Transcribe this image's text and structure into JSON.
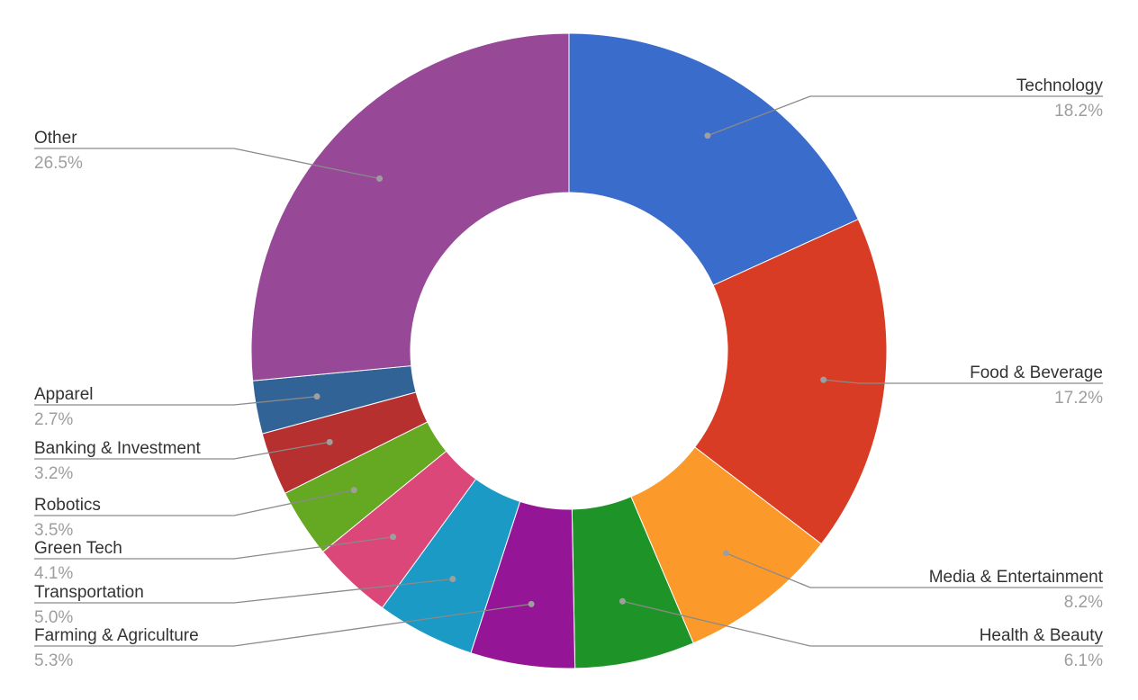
{
  "chart_data": {
    "type": "pie",
    "donut": true,
    "slices": [
      {
        "label": "Technology",
        "value": 18.2,
        "value_label": "18.2%",
        "color": "#3a6ccb"
      },
      {
        "label": "Food & Beverage",
        "value": 17.2,
        "value_label": "17.2%",
        "color": "#d93c25"
      },
      {
        "label": "Media & Entertainment",
        "value": 8.2,
        "value_label": "8.2%",
        "color": "#fb9a2a"
      },
      {
        "label": "Health & Beauty",
        "value": 6.1,
        "value_label": "6.1%",
        "color": "#1e9428"
      },
      {
        "label": "Farming & Agriculture",
        "value": 5.3,
        "value_label": "5.3%",
        "color": "#951597"
      },
      {
        "label": "Transportation",
        "value": 5.0,
        "value_label": "5.0%",
        "color": "#1a9ac5"
      },
      {
        "label": "Green Tech",
        "value": 4.1,
        "value_label": "4.1%",
        "color": "#dc4779"
      },
      {
        "label": "Robotics",
        "value": 3.5,
        "value_label": "3.5%",
        "color": "#65a821"
      },
      {
        "label": "Banking & Investment",
        "value": 3.2,
        "value_label": "3.2%",
        "color": "#b63030"
      },
      {
        "label": "Apparel",
        "value": 2.7,
        "value_label": "2.7%",
        "color": "#326396"
      },
      {
        "label": "Other",
        "value": 26.5,
        "value_label": "26.5%",
        "color": "#974896"
      }
    ],
    "legend": "none"
  }
}
